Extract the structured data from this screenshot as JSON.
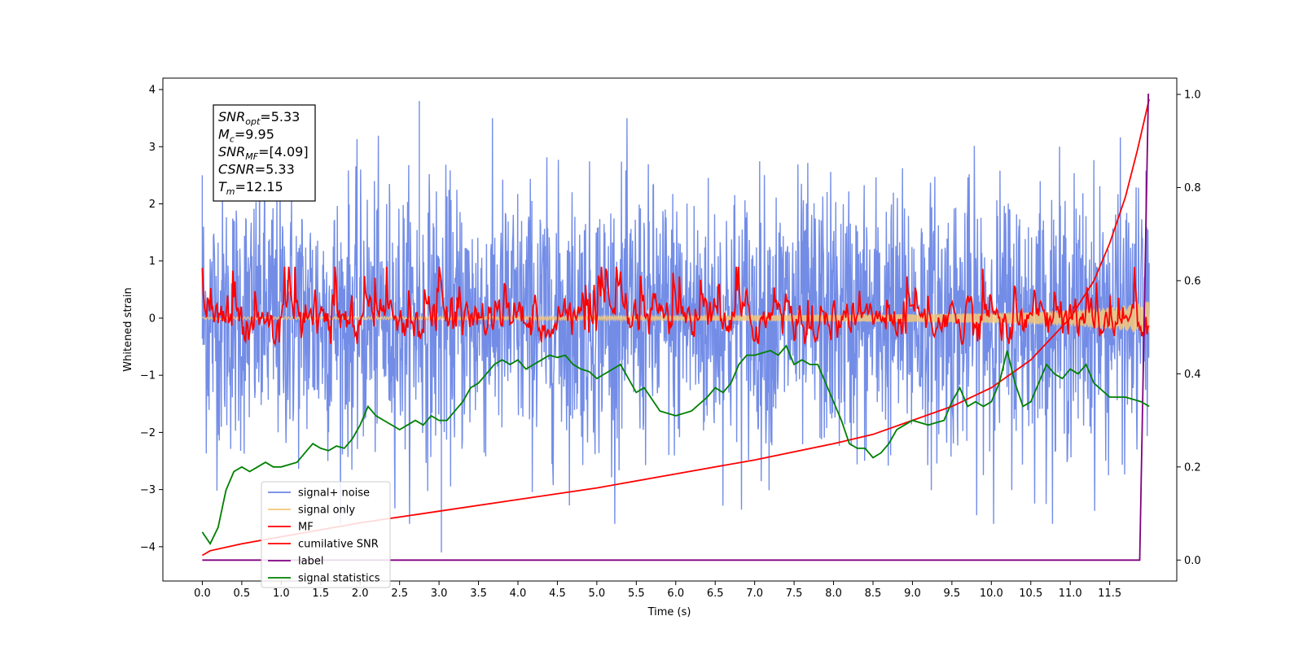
{
  "chart_data": {
    "type": "line",
    "xlabel": "Time (s)",
    "ylabel": "Whitened strain",
    "xlim": [
      -0.5,
      12.35
    ],
    "ylim": [
      -4.6,
      4.2
    ],
    "y2lim": [
      -0.045,
      1.035
    ],
    "x_ticks": [
      "0.0",
      "0.5",
      "1.0",
      "1.5",
      "2.0",
      "2.5",
      "3.0",
      "3.5",
      "4.0",
      "4.5",
      "5.0",
      "5.5",
      "6.0",
      "6.5",
      "7.0",
      "7.5",
      "8.0",
      "8.5",
      "9.0",
      "9.5",
      "10.0",
      "10.5",
      "11.0",
      "11.5"
    ],
    "y_ticks": [
      "4",
      "3",
      "2",
      "1",
      "0",
      "−1",
      "−2",
      "−3",
      "−4"
    ],
    "y2_ticks": [
      "1.0",
      "0.8",
      "0.6",
      "0.4",
      "0.2",
      "0.0"
    ],
    "info_box": [
      {
        "name": "SNR",
        "sub": "opt",
        "value": "=5.33"
      },
      {
        "name": "M",
        "sub": "c",
        "value": "=9.95"
      },
      {
        "name": "SNR",
        "sub": "MF",
        "value": "=[4.09]"
      },
      {
        "name": "CSNR",
        "sub": "",
        "value": "=5.33"
      },
      {
        "name": "T",
        "sub": "m",
        "value": "=12.15"
      }
    ],
    "legend_position": "lower-left",
    "series": [
      {
        "name": "signal+ noise",
        "color": "#6b87e6",
        "axis": "left",
        "approx_range": [
          -3.8,
          3.8
        ],
        "note_values": [
          [
            0.0,
            2.5
          ],
          [
            2.75,
            3.8
          ],
          [
            3.03,
            -4.1
          ],
          [
            12.0,
            0.0
          ]
        ]
      },
      {
        "name": "signal only",
        "color": "#f5c87a",
        "axis": "left",
        "x": [
          0,
          2,
          4,
          6,
          8,
          9,
          10,
          10.5,
          11,
          11.5,
          11.8,
          12.0
        ],
        "amplitude": [
          0.02,
          0.025,
          0.03,
          0.04,
          0.06,
          0.07,
          0.09,
          0.11,
          0.14,
          0.19,
          0.24,
          0.3
        ]
      },
      {
        "name": "MF",
        "color": "#ff0000",
        "axis": "left",
        "approx_range": [
          -0.45,
          0.9
        ]
      },
      {
        "name": "cumilative SNR",
        "color": "#ff0000",
        "axis": "right",
        "x": [
          0.0,
          0.1,
          0.5,
          1.0,
          2.0,
          3.0,
          4.0,
          5.0,
          6.0,
          7.0,
          8.0,
          8.5,
          9.0,
          9.5,
          10.0,
          10.5,
          11.0,
          11.3,
          11.5,
          11.7,
          11.85,
          12.0
        ],
        "values": [
          0.01,
          0.02,
          0.035,
          0.05,
          0.08,
          0.105,
          0.13,
          0.155,
          0.185,
          0.215,
          0.25,
          0.27,
          0.3,
          0.33,
          0.37,
          0.43,
          0.52,
          0.6,
          0.68,
          0.78,
          0.88,
          0.99
        ]
      },
      {
        "name": "label",
        "color": "#800080",
        "axis": "right",
        "x": [
          0.0,
          11.88,
          11.88,
          11.99,
          12.0
        ],
        "values": [
          0.0,
          0.0,
          0.0,
          1.0,
          1.0
        ]
      },
      {
        "name": "signal statistics",
        "color": "#008000",
        "axis": "right",
        "x": [
          0.0,
          0.1,
          0.2,
          0.3,
          0.4,
          0.5,
          0.6,
          0.7,
          0.8,
          0.9,
          1.0,
          1.2,
          1.3,
          1.4,
          1.5,
          1.6,
          1.7,
          1.8,
          1.9,
          2.0,
          2.1,
          2.2,
          2.3,
          2.5,
          2.6,
          2.7,
          2.8,
          2.9,
          3.0,
          3.1,
          3.2,
          3.3,
          3.4,
          3.5,
          3.6,
          3.7,
          3.8,
          3.9,
          4.0,
          4.1,
          4.2,
          4.3,
          4.4,
          4.5,
          4.6,
          4.7,
          4.8,
          4.9,
          5.0,
          5.2,
          5.3,
          5.5,
          5.6,
          5.8,
          6.0,
          6.2,
          6.4,
          6.5,
          6.6,
          6.7,
          6.8,
          6.9,
          7.0,
          7.2,
          7.3,
          7.4,
          7.5,
          7.6,
          7.7,
          7.8,
          7.9,
          8.0,
          8.1,
          8.2,
          8.3,
          8.4,
          8.5,
          8.6,
          8.7,
          8.8,
          8.9,
          9.0,
          9.2,
          9.4,
          9.5,
          9.6,
          9.7,
          9.8,
          9.9,
          10.0,
          10.1,
          10.2,
          10.3,
          10.4,
          10.5,
          10.6,
          10.7,
          10.8,
          10.9,
          11.0,
          11.1,
          11.2,
          11.3,
          11.5,
          11.7,
          11.9,
          12.0
        ],
        "values": [
          0.06,
          0.035,
          0.07,
          0.15,
          0.19,
          0.2,
          0.19,
          0.2,
          0.21,
          0.2,
          0.2,
          0.21,
          0.23,
          0.25,
          0.24,
          0.235,
          0.245,
          0.24,
          0.26,
          0.29,
          0.33,
          0.31,
          0.3,
          0.28,
          0.29,
          0.3,
          0.29,
          0.31,
          0.3,
          0.3,
          0.32,
          0.34,
          0.37,
          0.38,
          0.4,
          0.42,
          0.43,
          0.42,
          0.43,
          0.41,
          0.42,
          0.43,
          0.44,
          0.435,
          0.44,
          0.42,
          0.41,
          0.405,
          0.39,
          0.41,
          0.42,
          0.36,
          0.37,
          0.32,
          0.31,
          0.32,
          0.35,
          0.37,
          0.36,
          0.38,
          0.42,
          0.44,
          0.44,
          0.45,
          0.44,
          0.46,
          0.42,
          0.43,
          0.42,
          0.42,
          0.38,
          0.34,
          0.3,
          0.25,
          0.24,
          0.24,
          0.22,
          0.23,
          0.25,
          0.28,
          0.29,
          0.3,
          0.29,
          0.3,
          0.34,
          0.37,
          0.33,
          0.34,
          0.33,
          0.34,
          0.38,
          0.45,
          0.38,
          0.33,
          0.34,
          0.38,
          0.42,
          0.4,
          0.39,
          0.41,
          0.4,
          0.42,
          0.38,
          0.35,
          0.35,
          0.34,
          0.33
        ]
      }
    ]
  }
}
